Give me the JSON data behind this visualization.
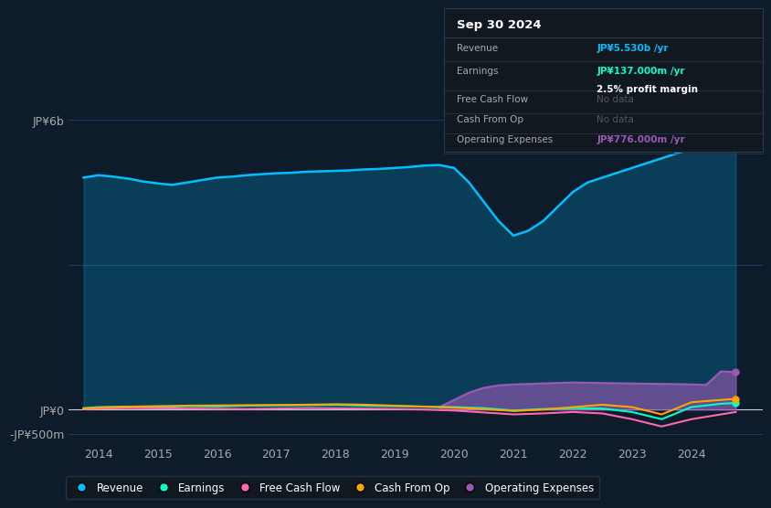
{
  "bg_color": "#0d1b2a",
  "plot_bg_color": "#0d1b2a",
  "title": "Sep 30 2024",
  "ylim": [
    -700000000,
    6500000000
  ],
  "xlim": [
    2013.5,
    2025.2
  ],
  "xticks": [
    2014,
    2015,
    2016,
    2017,
    2018,
    2019,
    2020,
    2021,
    2022,
    2023,
    2024
  ],
  "yticks": [
    6000000000,
    0,
    -500000000
  ],
  "ytick_labels": [
    "JP¥6b",
    "JP¥0",
    "-JP¥500m"
  ],
  "revenue_color": "#00bfff",
  "earnings_color": "#00ffcc",
  "fcf_color": "#ff69b4",
  "cashfromop_color": "#ffa500",
  "opex_color": "#9b59b6",
  "legend_items": [
    "Revenue",
    "Earnings",
    "Free Cash Flow",
    "Cash From Op",
    "Operating Expenses"
  ],
  "legend_colors": [
    "#00bfff",
    "#00ffcc",
    "#ff69b4",
    "#ffa500",
    "#9b59b6"
  ],
  "grid_color": "#1e3a5f",
  "revenue_x": [
    2013.75,
    2014.0,
    2014.25,
    2014.5,
    2014.75,
    2015.0,
    2015.25,
    2015.5,
    2015.75,
    2016.0,
    2016.25,
    2016.5,
    2016.75,
    2017.0,
    2017.25,
    2017.5,
    2017.75,
    2018.0,
    2018.25,
    2018.5,
    2018.75,
    2019.0,
    2019.25,
    2019.5,
    2019.75,
    2020.0,
    2020.25,
    2020.5,
    2020.75,
    2021.0,
    2021.25,
    2021.5,
    2021.75,
    2022.0,
    2022.25,
    2022.5,
    2022.75,
    2023.0,
    2023.25,
    2023.5,
    2023.75,
    2024.0,
    2024.25,
    2024.5,
    2024.75
  ],
  "revenue_y": [
    4800000000,
    4850000000,
    4820000000,
    4780000000,
    4720000000,
    4680000000,
    4650000000,
    4700000000,
    4750000000,
    4800000000,
    4820000000,
    4850000000,
    4870000000,
    4890000000,
    4900000000,
    4920000000,
    4930000000,
    4940000000,
    4950000000,
    4970000000,
    4980000000,
    5000000000,
    5020000000,
    5050000000,
    5060000000,
    5000000000,
    4700000000,
    4300000000,
    3900000000,
    3600000000,
    3700000000,
    3900000000,
    4200000000,
    4500000000,
    4700000000,
    4800000000,
    4900000000,
    5000000000,
    5100000000,
    5200000000,
    5300000000,
    5400000000,
    5450000000,
    5500000000,
    5530000000
  ],
  "earnings_x": [
    2013.75,
    2014.0,
    2014.5,
    2015.0,
    2015.5,
    2016.0,
    2016.5,
    2017.0,
    2017.5,
    2018.0,
    2018.5,
    2019.0,
    2019.5,
    2020.0,
    2020.5,
    2021.0,
    2021.5,
    2022.0,
    2022.5,
    2023.0,
    2023.5,
    2024.0,
    2024.5,
    2024.75
  ],
  "earnings_y": [
    30000000,
    50000000,
    60000000,
    55000000,
    70000000,
    65000000,
    80000000,
    85000000,
    90000000,
    95000000,
    80000000,
    70000000,
    60000000,
    50000000,
    30000000,
    -20000000,
    10000000,
    30000000,
    20000000,
    -50000000,
    -200000000,
    50000000,
    120000000,
    137000000
  ],
  "fcf_x": [
    2013.75,
    2014.0,
    2014.5,
    2015.0,
    2015.5,
    2016.0,
    2016.5,
    2017.0,
    2017.5,
    2018.0,
    2018.5,
    2019.0,
    2019.5,
    2020.0,
    2020.5,
    2021.0,
    2021.5,
    2022.0,
    2022.5,
    2023.0,
    2023.5,
    2024.0,
    2024.5,
    2024.75
  ],
  "fcf_y": [
    10000000,
    20000000,
    30000000,
    25000000,
    20000000,
    15000000,
    10000000,
    20000000,
    30000000,
    25000000,
    20000000,
    10000000,
    0,
    -20000000,
    -60000000,
    -100000000,
    -80000000,
    -50000000,
    -80000000,
    -200000000,
    -350000000,
    -200000000,
    -100000000,
    -50000000
  ],
  "cashfromop_x": [
    2013.75,
    2014.0,
    2014.5,
    2015.0,
    2015.5,
    2016.0,
    2016.5,
    2017.0,
    2017.5,
    2018.0,
    2018.5,
    2019.0,
    2019.5,
    2020.0,
    2020.5,
    2021.0,
    2021.5,
    2022.0,
    2022.5,
    2023.0,
    2023.5,
    2024.0,
    2024.5,
    2024.75
  ],
  "cashfromop_y": [
    20000000,
    40000000,
    60000000,
    70000000,
    80000000,
    85000000,
    90000000,
    95000000,
    100000000,
    110000000,
    100000000,
    80000000,
    60000000,
    40000000,
    10000000,
    -30000000,
    0,
    50000000,
    100000000,
    50000000,
    -100000000,
    150000000,
    200000000,
    220000000
  ],
  "opex_x": [
    2019.75,
    2020.0,
    2020.25,
    2020.5,
    2020.75,
    2021.0,
    2021.25,
    2021.5,
    2021.75,
    2022.0,
    2022.25,
    2022.5,
    2022.75,
    2023.0,
    2023.25,
    2023.5,
    2023.75,
    2024.0,
    2024.25,
    2024.5,
    2024.75
  ],
  "opex_y": [
    50000000,
    200000000,
    350000000,
    450000000,
    500000000,
    520000000,
    530000000,
    540000000,
    550000000,
    560000000,
    555000000,
    550000000,
    545000000,
    540000000,
    535000000,
    530000000,
    528000000,
    520000000,
    510000000,
    790000000,
    776000000
  ],
  "info_rows": [
    {
      "label": "Revenue",
      "value": "JP¥5.530b /yr",
      "value_color": "#00bfff",
      "sub": null
    },
    {
      "label": "Earnings",
      "value": "JP¥137.000m /yr",
      "value_color": "#00ffcc",
      "sub": "2.5% profit margin"
    },
    {
      "label": "Free Cash Flow",
      "value": "No data",
      "value_color": "#555566",
      "sub": null
    },
    {
      "label": "Cash From Op",
      "value": "No data",
      "value_color": "#555566",
      "sub": null
    },
    {
      "label": "Operating Expenses",
      "value": "JP¥776.000m /yr",
      "value_color": "#9b59b6",
      "sub": null
    }
  ]
}
